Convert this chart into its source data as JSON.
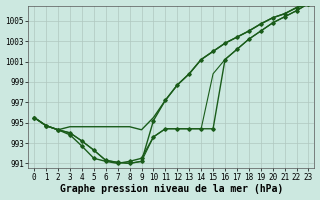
{
  "xlabel": "Graphe pression niveau de la mer (hPa)",
  "background_color": "#cce8e0",
  "grid_color": "#b0c8c0",
  "line_color": "#1a5c1a",
  "ylim": [
    990.5,
    1006.5
  ],
  "yticks": [
    991,
    993,
    995,
    997,
    999,
    1001,
    1003,
    1005
  ],
  "xlim": [
    -0.5,
    23.5
  ],
  "xticks": [
    0,
    1,
    2,
    3,
    4,
    5,
    6,
    7,
    8,
    9,
    10,
    11,
    12,
    13,
    14,
    15,
    16,
    17,
    18,
    19,
    20,
    21,
    22,
    23
  ],
  "series": [
    {
      "y": [
        995.5,
        994.7,
        994.3,
        994.6,
        994.6,
        994.6,
        994.6,
        994.6,
        994.6,
        994.3,
        995.5,
        997.2,
        998.7,
        999.8,
        1001.2,
        1002.0,
        1002.8,
        1003.4,
        1004.0,
        1004.7,
        1005.3,
        1005.7,
        1006.3,
        1006.7
      ],
      "marker": false,
      "linewidth": 1.0
    },
    {
      "y": [
        995.5,
        994.7,
        994.3,
        994.0,
        993.2,
        992.3,
        991.3,
        991.1,
        991.0,
        991.2,
        995.2,
        997.2,
        998.7,
        999.8,
        1001.2,
        1002.0,
        1002.8,
        1003.4,
        1004.0,
        1004.7,
        1005.3,
        1005.7,
        1006.3,
        1006.7
      ],
      "marker": true,
      "linewidth": 1.0
    },
    {
      "y": [
        995.5,
        994.7,
        994.3,
        993.8,
        992.7,
        991.5,
        991.2,
        991.0,
        991.2,
        991.5,
        993.6,
        994.4,
        994.4,
        994.4,
        994.4,
        994.4,
        1001.2,
        1002.2,
        1003.2,
        1004.0,
        1004.8,
        1005.4,
        1006.0,
        1006.7
      ],
      "marker": true,
      "linewidth": 1.0
    },
    {
      "y": [
        995.5,
        994.7,
        994.3,
        994.0,
        993.2,
        992.3,
        991.3,
        991.1,
        991.0,
        991.2,
        993.6,
        994.4,
        994.4,
        994.4,
        994.4,
        999.8,
        1001.2,
        1002.2,
        1003.2,
        1004.0,
        1004.8,
        1005.4,
        1006.0,
        1006.7
      ],
      "marker": false,
      "linewidth": 0.8
    }
  ],
  "xlabel_fontsize": 7,
  "tick_fontsize": 5.5
}
